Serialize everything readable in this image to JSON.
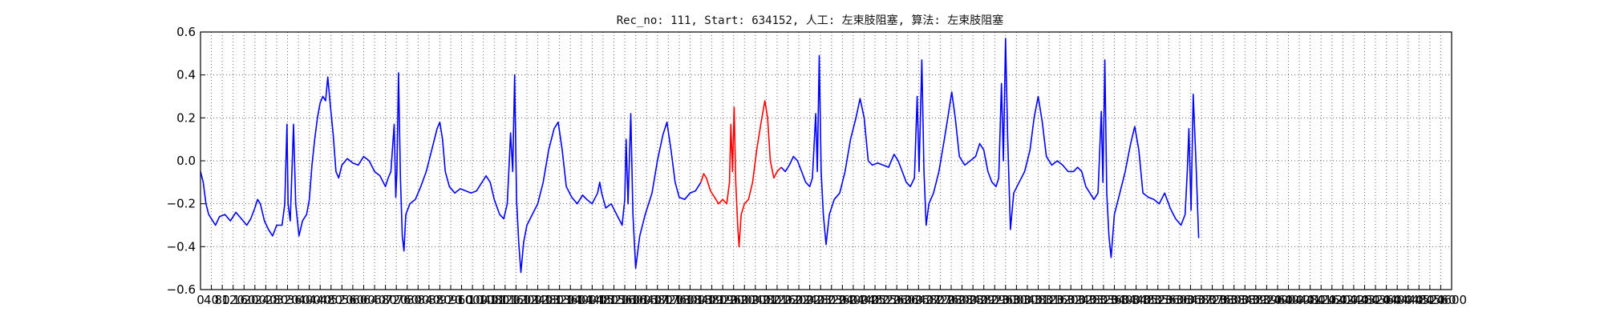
{
  "chart_data": {
    "type": "line",
    "title": "Rec_no: 111, Start: 634152, 人工: 左束肢阻塞, 算法: 左束肢阻塞",
    "xlabel": "",
    "ylabel": "",
    "xlim": [
      0,
      4600
    ],
    "ylim": [
      -0.6,
      0.6
    ],
    "grid": true,
    "xticks": [
      0,
      40,
      80,
      120,
      160,
      200,
      240,
      280,
      320,
      360,
      400,
      440,
      480,
      520,
      560,
      600,
      640,
      680,
      720,
      760,
      800,
      840,
      880,
      920,
      960,
      1000,
      1040,
      1080,
      1120,
      1160,
      1200,
      1240,
      1280,
      1320,
      1360,
      1400,
      1440,
      1480,
      1520,
      1560,
      1600,
      1640,
      1680,
      1720,
      1760,
      1800,
      1840,
      1880,
      1920,
      1960,
      2000,
      2040,
      2080,
      2120,
      2160,
      2200,
      2240,
      2280,
      2320,
      2360,
      2400,
      2440,
      2480,
      2520,
      2560,
      2600,
      2640,
      2680,
      2720,
      2760,
      2800,
      2840,
      2880,
      2920,
      2960,
      3000,
      3040,
      3080,
      3120,
      3160,
      3200,
      3240,
      3280,
      3320,
      3360,
      3400,
      3440,
      3480,
      3520,
      3560,
      3600,
      3640,
      3680,
      3720,
      3760,
      3800,
      3840,
      3880,
      3920,
      3960,
      4000,
      4040,
      4080,
      4120,
      4160,
      4200,
      4240,
      4280,
      4320,
      4360,
      4400,
      4440,
      4480,
      4520,
      4560,
      4600
    ],
    "yticks": [
      -0.6,
      -0.4,
      -0.2,
      0.0,
      0.2,
      0.4,
      0.6
    ],
    "ytick_labels": [
      "−0.6",
      "−0.4",
      "−0.2",
      "0.0",
      "0.2",
      "0.4",
      "0.6"
    ],
    "series": [
      {
        "color": "#0000ff",
        "points": [
          [
            0,
            -0.05
          ],
          [
            10,
            -0.1
          ],
          [
            20,
            -0.2
          ],
          [
            30,
            -0.25
          ],
          [
            40,
            -0.27
          ],
          [
            55,
            -0.3
          ],
          [
            70,
            -0.26
          ],
          [
            90,
            -0.25
          ],
          [
            110,
            -0.28
          ],
          [
            130,
            -0.24
          ],
          [
            150,
            -0.27
          ],
          [
            170,
            -0.3
          ],
          [
            185,
            -0.27
          ],
          [
            200,
            -0.22
          ],
          [
            210,
            -0.18
          ],
          [
            220,
            -0.2
          ],
          [
            235,
            -0.28
          ],
          [
            250,
            -0.32
          ],
          [
            265,
            -0.35
          ],
          [
            280,
            -0.3
          ],
          [
            300,
            -0.3
          ],
          [
            310,
            -0.2
          ],
          [
            318,
            0.17
          ],
          [
            322,
            -0.2
          ],
          [
            330,
            -0.28
          ],
          [
            342,
            0.17
          ],
          [
            350,
            -0.2
          ],
          [
            362,
            -0.35
          ],
          [
            375,
            -0.28
          ],
          [
            390,
            -0.25
          ],
          [
            400,
            -0.18
          ],
          [
            410,
            -0.02
          ],
          [
            420,
            0.1
          ],
          [
            430,
            0.2
          ],
          [
            440,
            0.27
          ],
          [
            450,
            0.3
          ],
          [
            460,
            0.28
          ],
          [
            468,
            0.39
          ],
          [
            478,
            0.25
          ],
          [
            488,
            0.12
          ],
          [
            498,
            -0.05
          ],
          [
            508,
            -0.08
          ],
          [
            520,
            -0.02
          ],
          [
            540,
            0.01
          ],
          [
            560,
            -0.01
          ],
          [
            580,
            -0.02
          ],
          [
            600,
            0.02
          ],
          [
            620,
            0.0
          ],
          [
            640,
            -0.05
          ],
          [
            660,
            -0.07
          ],
          [
            680,
            -0.12
          ],
          [
            690,
            -0.08
          ],
          [
            700,
            -0.05
          ],
          [
            712,
            0.17
          ],
          [
            718,
            -0.17
          ],
          [
            722,
            -0.05
          ],
          [
            728,
            0.41
          ],
          [
            735,
            -0.08
          ],
          [
            742,
            -0.35
          ],
          [
            748,
            -0.42
          ],
          [
            755,
            -0.25
          ],
          [
            770,
            -0.2
          ],
          [
            790,
            -0.18
          ],
          [
            810,
            -0.12
          ],
          [
            830,
            -0.05
          ],
          [
            850,
            0.05
          ],
          [
            870,
            0.15
          ],
          [
            880,
            0.18
          ],
          [
            890,
            0.1
          ],
          [
            900,
            -0.05
          ],
          [
            915,
            -0.12
          ],
          [
            935,
            -0.15
          ],
          [
            955,
            -0.13
          ],
          [
            975,
            -0.14
          ],
          [
            995,
            -0.15
          ],
          [
            1015,
            -0.14
          ],
          [
            1035,
            -0.1
          ],
          [
            1050,
            -0.07
          ],
          [
            1065,
            -0.1
          ],
          [
            1080,
            -0.18
          ],
          [
            1100,
            -0.25
          ],
          [
            1115,
            -0.27
          ],
          [
            1128,
            -0.2
          ],
          [
            1136,
            0.02
          ],
          [
            1140,
            0.13
          ],
          [
            1148,
            -0.05
          ],
          [
            1155,
            0.4
          ],
          [
            1162,
            -0.18
          ],
          [
            1170,
            -0.38
          ],
          [
            1178,
            -0.52
          ],
          [
            1188,
            -0.38
          ],
          [
            1200,
            -0.3
          ],
          [
            1220,
            -0.25
          ],
          [
            1240,
            -0.2
          ],
          [
            1260,
            -0.1
          ],
          [
            1280,
            0.05
          ],
          [
            1300,
            0.15
          ],
          [
            1315,
            0.18
          ],
          [
            1330,
            0.05
          ],
          [
            1345,
            -0.12
          ],
          [
            1365,
            -0.17
          ],
          [
            1385,
            -0.2
          ],
          [
            1405,
            -0.16
          ],
          [
            1420,
            -0.18
          ],
          [
            1440,
            -0.2
          ],
          [
            1460,
            -0.15
          ],
          [
            1468,
            -0.1
          ],
          [
            1475,
            -0.15
          ],
          [
            1490,
            -0.22
          ],
          [
            1510,
            -0.2
          ],
          [
            1530,
            -0.25
          ],
          [
            1550,
            -0.3
          ],
          [
            1560,
            -0.18
          ],
          [
            1565,
            0.1
          ],
          [
            1572,
            -0.2
          ],
          [
            1582,
            0.22
          ],
          [
            1590,
            -0.25
          ],
          [
            1600,
            -0.5
          ],
          [
            1615,
            -0.35
          ],
          [
            1635,
            -0.25
          ],
          [
            1660,
            -0.15
          ],
          [
            1680,
            0.0
          ],
          [
            1700,
            0.12
          ],
          [
            1715,
            0.18
          ],
          [
            1730,
            0.05
          ],
          [
            1745,
            -0.1
          ],
          [
            1760,
            -0.17
          ],
          [
            1780,
            -0.18
          ],
          [
            1800,
            -0.15
          ],
          [
            1820,
            -0.14
          ],
          [
            1840,
            -0.1
          ]
        ]
      },
      {
        "color": "#ff0000",
        "points": [
          [
            1840,
            -0.1
          ],
          [
            1850,
            -0.06
          ],
          [
            1860,
            -0.08
          ],
          [
            1875,
            -0.14
          ],
          [
            1890,
            -0.17
          ],
          [
            1905,
            -0.2
          ],
          [
            1920,
            -0.18
          ],
          [
            1935,
            -0.2
          ],
          [
            1945,
            -0.1
          ],
          [
            1950,
            0.17
          ],
          [
            1956,
            -0.05
          ],
          [
            1962,
            0.25
          ],
          [
            1968,
            -0.1
          ],
          [
            1975,
            -0.3
          ],
          [
            1980,
            -0.4
          ],
          [
            1988,
            -0.25
          ],
          [
            2000,
            -0.2
          ],
          [
            2015,
            -0.18
          ],
          [
            2030,
            -0.1
          ],
          [
            2045,
            0.05
          ],
          [
            2060,
            0.17
          ],
          [
            2075,
            0.28
          ],
          [
            2085,
            0.2
          ],
          [
            2095,
            0.0
          ],
          [
            2108,
            -0.08
          ],
          [
            2120,
            -0.05
          ],
          [
            2135,
            -0.03
          ]
        ]
      },
      {
        "color": "#0000ff",
        "points": [
          [
            2135,
            -0.03
          ],
          [
            2150,
            -0.05
          ],
          [
            2165,
            -0.02
          ],
          [
            2180,
            0.02
          ],
          [
            2195,
            0.0
          ],
          [
            2210,
            -0.05
          ],
          [
            2225,
            -0.1
          ],
          [
            2240,
            -0.12
          ],
          [
            2250,
            -0.08
          ],
          [
            2262,
            0.22
          ],
          [
            2268,
            -0.05
          ],
          [
            2275,
            0.49
          ],
          [
            2282,
            -0.05
          ],
          [
            2290,
            -0.25
          ],
          [
            2300,
            -0.39
          ],
          [
            2312,
            -0.25
          ],
          [
            2330,
            -0.18
          ],
          [
            2350,
            -0.15
          ],
          [
            2370,
            -0.05
          ],
          [
            2390,
            0.1
          ],
          [
            2410,
            0.2
          ],
          [
            2425,
            0.29
          ],
          [
            2440,
            0.2
          ],
          [
            2455,
            0.0
          ],
          [
            2470,
            -0.02
          ],
          [
            2490,
            -0.01
          ],
          [
            2510,
            -0.02
          ],
          [
            2530,
            -0.03
          ],
          [
            2550,
            0.03
          ],
          [
            2565,
            0.0
          ],
          [
            2580,
            -0.05
          ],
          [
            2595,
            -0.1
          ],
          [
            2610,
            -0.12
          ],
          [
            2625,
            -0.08
          ],
          [
            2635,
            0.3
          ],
          [
            2642,
            -0.05
          ],
          [
            2652,
            0.47
          ],
          [
            2660,
            -0.05
          ],
          [
            2668,
            -0.3
          ],
          [
            2678,
            -0.2
          ],
          [
            2695,
            -0.15
          ],
          [
            2715,
            -0.05
          ],
          [
            2735,
            0.1
          ],
          [
            2750,
            0.22
          ],
          [
            2762,
            0.32
          ],
          [
            2775,
            0.2
          ],
          [
            2790,
            0.02
          ],
          [
            2810,
            -0.02
          ],
          [
            2830,
            0.0
          ],
          [
            2850,
            0.02
          ],
          [
            2865,
            0.08
          ],
          [
            2880,
            0.05
          ],
          [
            2895,
            -0.05
          ],
          [
            2910,
            -0.1
          ],
          [
            2925,
            -0.12
          ],
          [
            2935,
            -0.08
          ],
          [
            2945,
            0.36
          ],
          [
            2952,
            0.0
          ],
          [
            2960,
            0.57
          ],
          [
            2968,
            0.1
          ],
          [
            2978,
            -0.32
          ],
          [
            2990,
            -0.15
          ],
          [
            3010,
            -0.1
          ],
          [
            3030,
            -0.05
          ],
          [
            3050,
            0.05
          ],
          [
            3065,
            0.2
          ],
          [
            3080,
            0.3
          ],
          [
            3095,
            0.18
          ],
          [
            3110,
            0.02
          ],
          [
            3130,
            -0.02
          ],
          [
            3150,
            0.0
          ],
          [
            3170,
            -0.02
          ],
          [
            3190,
            -0.05
          ],
          [
            3210,
            -0.05
          ],
          [
            3225,
            -0.03
          ],
          [
            3240,
            -0.05
          ],
          [
            3255,
            -0.12
          ],
          [
            3270,
            -0.15
          ],
          [
            3285,
            -0.18
          ],
          [
            3300,
            -0.15
          ],
          [
            3312,
            0.23
          ],
          [
            3318,
            -0.1
          ],
          [
            3325,
            0.47
          ],
          [
            3332,
            -0.15
          ],
          [
            3340,
            -0.35
          ],
          [
            3348,
            -0.45
          ],
          [
            3360,
            -0.25
          ],
          [
            3380,
            -0.15
          ],
          [
            3400,
            -0.05
          ],
          [
            3420,
            0.08
          ],
          [
            3435,
            0.16
          ],
          [
            3450,
            0.05
          ],
          [
            3465,
            -0.15
          ],
          [
            3485,
            -0.17
          ],
          [
            3505,
            -0.18
          ],
          [
            3525,
            -0.2
          ],
          [
            3545,
            -0.15
          ],
          [
            3565,
            -0.22
          ],
          [
            3585,
            -0.27
          ],
          [
            3605,
            -0.3
          ],
          [
            3620,
            -0.25
          ],
          [
            3628,
            -0.05
          ],
          [
            3634,
            0.15
          ],
          [
            3642,
            -0.23
          ],
          [
            3650,
            0.31
          ],
          [
            3660,
            0.0
          ],
          [
            3670,
            -0.36
          ]
        ]
      }
    ]
  }
}
